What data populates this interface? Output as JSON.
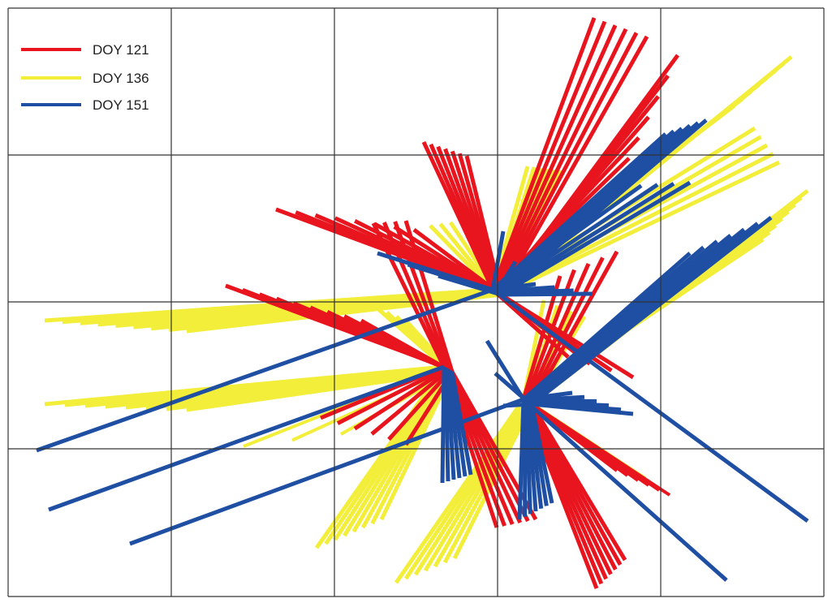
{
  "legend": {
    "items": [
      {
        "label": "DOY 121",
        "color": "#e8141e"
      },
      {
        "label": "DOY 136",
        "color": "#f2ee3a"
      },
      {
        "label": "DOY 151",
        "color": "#1f4fa3"
      }
    ]
  },
  "grid": {
    "columns": 5,
    "rows": 4,
    "line_color": "#333333"
  },
  "series_colors": {
    "doy121": "#e8141e",
    "doy136": "#f2ee3a",
    "doy151": "#1f4fa3"
  }
}
